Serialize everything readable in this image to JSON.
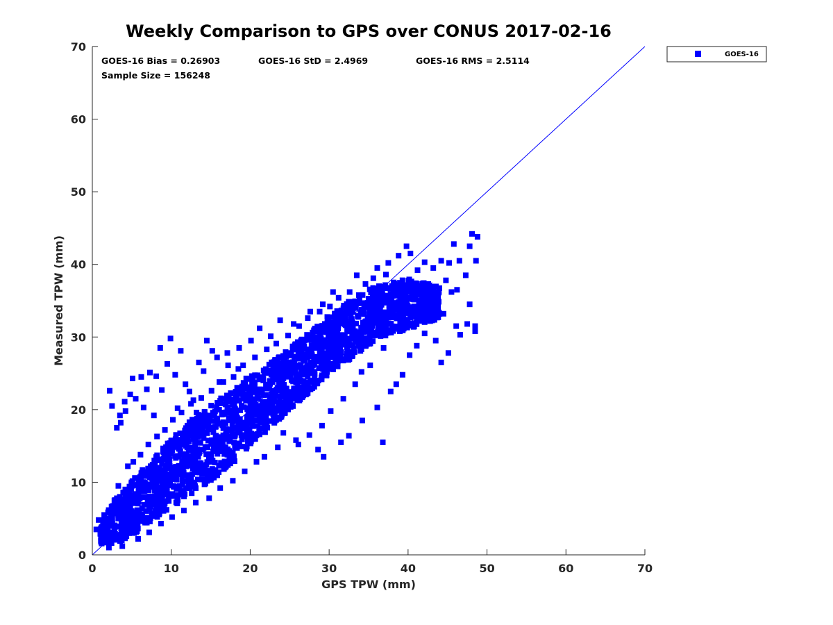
{
  "chart_data": {
    "type": "scatter",
    "title": "Weekly Comparison to GPS over CONUS 2017-02-16",
    "xlabel": "GPS TPW (mm)",
    "ylabel": "Measured TPW (mm)",
    "xlim": [
      0,
      70
    ],
    "ylim": [
      0,
      70
    ],
    "xticks": [
      "0",
      "10",
      "20",
      "30",
      "40",
      "50",
      "60",
      "70"
    ],
    "yticks": [
      "0",
      "10",
      "20",
      "30",
      "40",
      "50",
      "60",
      "70"
    ],
    "grid": false,
    "legend_position": "outside-top-right",
    "stats": {
      "bias": "GOES-16 Bias = 0.26903",
      "std": "GOES-16 StD = 2.4969",
      "rms": "GOES-16 RMS = 2.5114",
      "sample": "Sample Size = 156248"
    },
    "marker_color": "#0000ff",
    "reference_line": {
      "x": [
        0,
        70
      ],
      "y": [
        0,
        70
      ],
      "color": "#0000ff"
    },
    "series": [
      {
        "name": "GOES-16",
        "core_band": [
          [
            1,
            1.5,
            4.5
          ],
          [
            2,
            1.5,
            6.5
          ],
          [
            4,
            2,
            9
          ],
          [
            6,
            3.5,
            11.5
          ],
          [
            8,
            5,
            13.5
          ],
          [
            10,
            6.5,
            16
          ],
          [
            12,
            8,
            18
          ],
          [
            14,
            9.5,
            20
          ],
          [
            16,
            11,
            21.5
          ],
          [
            18,
            12.5,
            23
          ],
          [
            20,
            15,
            24.5
          ],
          [
            22,
            17,
            26
          ],
          [
            24,
            19,
            27.5
          ],
          [
            26,
            21,
            29.5
          ],
          [
            28,
            23,
            31
          ],
          [
            30,
            25,
            33
          ],
          [
            32,
            26.5,
            34.5
          ],
          [
            34,
            28,
            36
          ],
          [
            36,
            29.5,
            37
          ],
          [
            38,
            30.5,
            37.5
          ],
          [
            40,
            31,
            38
          ],
          [
            42,
            32,
            37.5
          ],
          [
            44,
            32.5,
            37
          ]
        ],
        "points": [
          [
            2.2,
            22.6
          ],
          [
            2.5,
            20.5
          ],
          [
            3.1,
            17.5
          ],
          [
            3.5,
            19.2
          ],
          [
            4.2,
            19.8
          ],
          [
            4.8,
            22.1
          ],
          [
            5.1,
            24.3
          ],
          [
            5.5,
            21.5
          ],
          [
            6.2,
            24.5
          ],
          [
            6.5,
            20.3
          ],
          [
            7.3,
            25.1
          ],
          [
            8.1,
            24.6
          ],
          [
            8.6,
            28.5
          ],
          [
            9.5,
            26.3
          ],
          [
            9.9,
            29.8
          ],
          [
            11.2,
            28.1
          ],
          [
            11.8,
            23.5
          ],
          [
            12.3,
            22.5
          ],
          [
            13.5,
            26.5
          ],
          [
            14.1,
            25.3
          ],
          [
            14.5,
            29.5
          ],
          [
            15.2,
            28.1
          ],
          [
            16.1,
            23.8
          ],
          [
            17.2,
            26.1
          ],
          [
            18.5,
            25.6
          ],
          [
            19.5,
            24.3
          ],
          [
            3.6,
            18.2
          ],
          [
            4.1,
            21.1
          ],
          [
            6.9,
            22.8
          ],
          [
            7.8,
            19.2
          ],
          [
            10.5,
            24.8
          ],
          [
            12.8,
            21.3
          ],
          [
            15.8,
            27.2
          ],
          [
            8.8,
            22.7
          ],
          [
            10.8,
            20.2
          ],
          [
            13.2,
            19.6
          ],
          [
            22.1,
            18.3
          ],
          [
            24.2,
            16.8
          ],
          [
            26.1,
            15.2
          ],
          [
            28.6,
            14.5
          ],
          [
            29.3,
            13.5
          ],
          [
            31.5,
            15.5
          ],
          [
            32.5,
            16.4
          ],
          [
            34.2,
            18.5
          ],
          [
            36.1,
            20.3
          ],
          [
            36.8,
            15.5
          ],
          [
            37.8,
            22.5
          ],
          [
            38.5,
            23.5
          ],
          [
            39.3,
            24.8
          ],
          [
            40.2,
            27.5
          ],
          [
            41.1,
            28.8
          ],
          [
            42.1,
            30.5
          ],
          [
            42.8,
            32.2
          ],
          [
            43.5,
            29.5
          ],
          [
            44.2,
            26.5
          ],
          [
            45.1,
            27.8
          ],
          [
            46.1,
            31.5
          ],
          [
            46.6,
            30.3
          ],
          [
            47.5,
            31.8
          ],
          [
            48.5,
            31.5
          ],
          [
            48.5,
            30.8
          ],
          [
            47.8,
            34.5
          ],
          [
            46.2,
            36.5
          ],
          [
            45.5,
            36.2
          ],
          [
            44.8,
            37.8
          ],
          [
            45.2,
            40.2
          ],
          [
            46.5,
            40.5
          ],
          [
            47.3,
            38.5
          ],
          [
            48.6,
            40.5
          ],
          [
            47.8,
            42.5
          ],
          [
            48.1,
            44.2
          ],
          [
            48.8,
            43.8
          ],
          [
            45.8,
            42.8
          ],
          [
            44.2,
            40.5
          ],
          [
            43.2,
            39.5
          ],
          [
            42.1,
            40.3
          ],
          [
            41.2,
            39.2
          ],
          [
            40.3,
            41.5
          ],
          [
            39.8,
            42.5
          ],
          [
            38.8,
            41.2
          ],
          [
            37.5,
            40.2
          ],
          [
            36.1,
            39.5
          ],
          [
            33.5,
            38.5
          ],
          [
            30.5,
            36.2
          ],
          [
            29.2,
            34.5
          ],
          [
            27.6,
            33.5
          ],
          [
            25.5,
            31.8
          ],
          [
            23.8,
            32.3
          ],
          [
            22.6,
            30.1
          ],
          [
            21.2,
            31.2
          ],
          [
            20.1,
            29.5
          ],
          [
            18.6,
            28.5
          ],
          [
            17.1,
            27.8
          ],
          [
            43.8,
            35.5
          ],
          [
            44.5,
            33.2
          ],
          [
            41.5,
            33.8
          ],
          [
            40.7,
            35.8
          ],
          [
            39.1,
            36.5
          ],
          [
            38.2,
            31.2
          ],
          [
            36.9,
            28.5
          ],
          [
            35.2,
            26.1
          ],
          [
            34.1,
            25.2
          ],
          [
            33.3,
            23.5
          ],
          [
            31.8,
            21.5
          ],
          [
            30.2,
            19.8
          ],
          [
            29.1,
            17.8
          ],
          [
            27.5,
            16.5
          ],
          [
            25.8,
            15.8
          ],
          [
            23.5,
            14.8
          ],
          [
            21.8,
            13.5
          ],
          [
            20.8,
            12.8
          ],
          [
            19.3,
            11.5
          ],
          [
            17.8,
            10.2
          ],
          [
            16.2,
            9.2
          ],
          [
            14.8,
            7.8
          ],
          [
            13.1,
            7.2
          ],
          [
            11.6,
            6.1
          ],
          [
            10.1,
            5.2
          ],
          [
            8.7,
            4.3
          ],
          [
            7.2,
            3.1
          ],
          [
            5.8,
            2.2
          ],
          [
            3.8,
            1.2
          ],
          [
            2.1,
            1.0
          ],
          [
            1.2,
            1.8
          ],
          [
            0.5,
            3.5
          ],
          [
            0.8,
            4.8
          ],
          [
            1.5,
            5.5
          ],
          [
            2.8,
            7.5
          ],
          [
            3.3,
            9.5
          ],
          [
            4.5,
            12.2
          ],
          [
            5.2,
            12.8
          ],
          [
            6.1,
            13.8
          ],
          [
            7.1,
            15.2
          ],
          [
            8.2,
            16.3
          ],
          [
            9.2,
            17.2
          ],
          [
            10.2,
            18.6
          ],
          [
            11.3,
            19.6
          ],
          [
            12.5,
            20.8
          ],
          [
            13.8,
            21.6
          ],
          [
            15.1,
            22.6
          ],
          [
            16.6,
            23.8
          ],
          [
            17.9,
            24.5
          ],
          [
            19.1,
            26.1
          ],
          [
            20.6,
            27.2
          ],
          [
            22.1,
            28.3
          ],
          [
            23.3,
            29.1
          ],
          [
            24.8,
            30.2
          ],
          [
            26.2,
            31.5
          ],
          [
            27.3,
            32.6
          ],
          [
            28.8,
            33.5
          ],
          [
            30.1,
            34.2
          ],
          [
            31.2,
            35.4
          ],
          [
            32.6,
            36.2
          ],
          [
            34.6,
            37.3
          ],
          [
            35.6,
            38.1
          ],
          [
            37.2,
            38.6
          ]
        ]
      }
    ]
  }
}
